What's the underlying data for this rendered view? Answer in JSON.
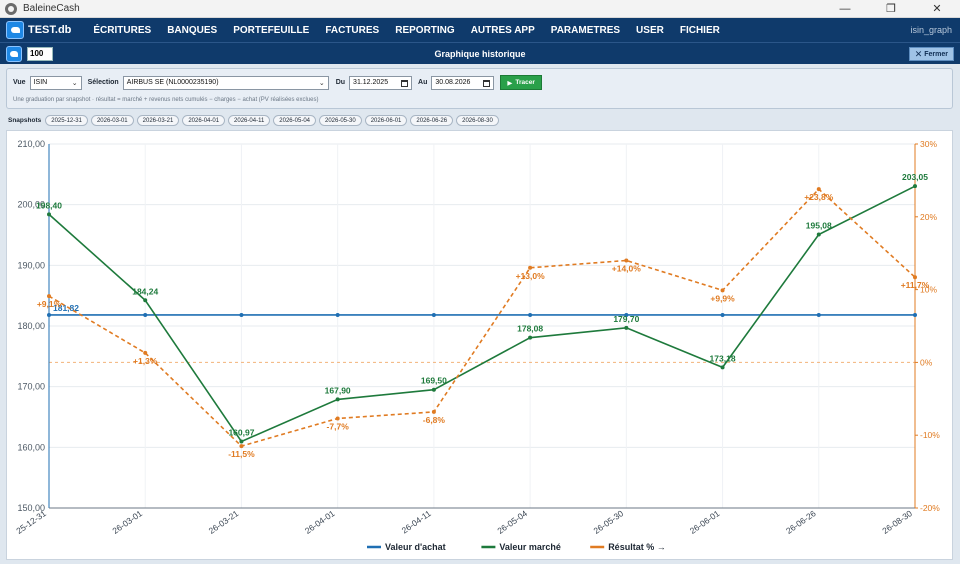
{
  "window": {
    "title": "BaleineCash",
    "minimize": "—",
    "maximize": "❐",
    "close": "✕"
  },
  "menu": {
    "logo": "TEST.db",
    "items": [
      "ÉCRITURES",
      "BANQUES",
      "PORTEFEUILLE",
      "FACTURES",
      "REPORTING",
      "AUTRES APP",
      "PARAMETRES",
      "USER",
      "FICHIER"
    ],
    "right_label": "isin_graph"
  },
  "header": {
    "zoom_value": "100",
    "title": "Graphique historique",
    "close_label": "Fermer"
  },
  "filters": {
    "vue_label": "Vue",
    "vue_value": "ISIN",
    "selection_label": "Sélection",
    "selection_value": "AIRBUS SE (NL0000235190)",
    "du_label": "Du",
    "du_value": "31.12.2025",
    "au_label": "Au",
    "au_value": "30.08.2026",
    "trace_label": "Tracer",
    "hint": "Une graduation par snapshot · résultat = marché + revenus nets cumulés − charges − achat (PV réalisées exclues)"
  },
  "snapshots": {
    "label": "Snapshots",
    "items": [
      "2025-12-31",
      "2026-03-01",
      "2026-03-21",
      "2026-04-01",
      "2026-04-11",
      "2026-05-04",
      "2026-05-30",
      "2026-06-01",
      "2026-06-26",
      "2026-08-30"
    ]
  },
  "chart_data": {
    "type": "line",
    "categories": [
      "25-12-31",
      "26-03-01",
      "26-03-21",
      "26-04-01",
      "26-04-11",
      "26-05-04",
      "26-05-30",
      "26-06-01",
      "26-06-26",
      "26-08-30"
    ],
    "y_left": {
      "ylim": [
        150,
        210
      ],
      "ticks": [
        "150,00",
        "160,00",
        "170,00",
        "180,00",
        "190,00",
        "200,00",
        "210,00"
      ]
    },
    "y_right": {
      "ylim": [
        -20,
        30
      ],
      "ticks": [
        "-20%",
        "-10%",
        "0%",
        "10%",
        "20%",
        "30%"
      ]
    },
    "grid": true,
    "legend_position": "bottom",
    "series": [
      {
        "name": "Valeur d'achat",
        "axis": "left",
        "color": "#1f6fb3",
        "values": [
          181.82,
          181.82,
          181.82,
          181.82,
          181.82,
          181.82,
          181.82,
          181.82,
          181.82,
          181.82
        ],
        "labels": [
          "181,82",
          "",
          "",
          "",
          "",
          "",
          "",
          "",
          "",
          ""
        ]
      },
      {
        "name": "Valeur marché",
        "axis": "left",
        "color": "#1e7a3c",
        "values": [
          198.4,
          184.24,
          160.97,
          167.9,
          169.5,
          178.08,
          179.7,
          173.18,
          195.08,
          203.05
        ],
        "labels": [
          "198,40",
          "184,24",
          "160,97",
          "167,90",
          "169,50",
          "178,08",
          "179,70",
          "173,18",
          "195,08",
          "203,05"
        ]
      },
      {
        "name": "Résultat % →",
        "axis": "right",
        "color": "#e07b22",
        "values": [
          9.1,
          1.3,
          -11.5,
          -7.7,
          -6.8,
          13.0,
          14.0,
          9.9,
          23.8,
          11.7
        ],
        "labels": [
          "+9,1%",
          "+1,3%",
          "-11,5%",
          "-7,7%",
          "-6,8%",
          "+13,0%",
          "+14,0%",
          "+9,9%",
          "+23,8%",
          "+11,7%"
        ]
      }
    ]
  }
}
